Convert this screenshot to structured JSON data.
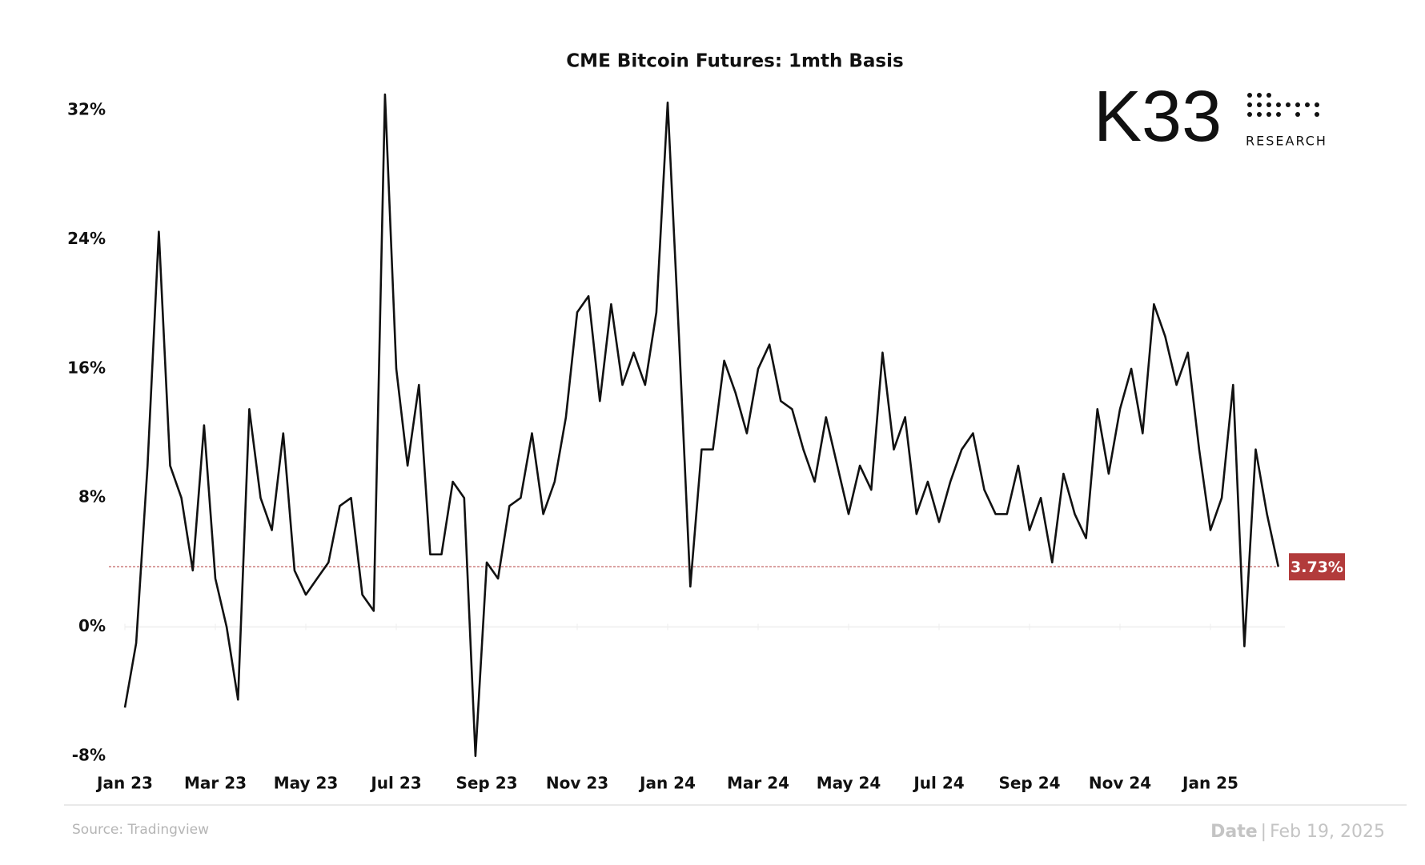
{
  "chart_data": {
    "type": "line",
    "title": "CME Bitcoin Futures: 1mth Basis",
    "brand": {
      "name": "K33",
      "sub": "RESEARCH"
    },
    "source": "Source: Tradingview",
    "date_label": "Date",
    "date_separator": "|",
    "date": "Feb 19, 2025",
    "color": "#111111",
    "highlight_color": "#b23b3b",
    "categories": [
      "Jan 23",
      null,
      null,
      null,
      null,
      null,
      null,
      null,
      "Mar 23",
      null,
      null,
      null,
      null,
      null,
      null,
      null,
      "May 23",
      null,
      null,
      null,
      null,
      null,
      null,
      null,
      "Jul 23",
      null,
      null,
      null,
      null,
      null,
      null,
      null,
      "Sep 23",
      null,
      null,
      null,
      null,
      null,
      null,
      null,
      "Nov 23",
      null,
      null,
      null,
      null,
      null,
      null,
      null,
      "Jan 24",
      null,
      null,
      null,
      null,
      null,
      null,
      null,
      "Mar 24",
      null,
      null,
      null,
      null,
      null,
      null,
      null,
      "May 24",
      null,
      null,
      null,
      null,
      null,
      null,
      null,
      "Jul 24",
      null,
      null,
      null,
      null,
      null,
      null,
      null,
      "Sep 24",
      null,
      null,
      null,
      null,
      null,
      null,
      null,
      "Nov 24",
      null,
      null,
      null,
      null,
      null,
      null,
      null,
      "Jan 25",
      null,
      null,
      null,
      null,
      null,
      null
    ],
    "values": [
      -5,
      -1,
      10,
      24.5,
      10,
      8,
      3.5,
      12.5,
      3,
      0,
      -4.5,
      13.5,
      8,
      6,
      12,
      3.5,
      2,
      3,
      4,
      7.5,
      8,
      2,
      1,
      33,
      16,
      10,
      15,
      4.5,
      4.5,
      9,
      8,
      -8,
      4,
      3,
      7.5,
      8,
      12,
      7,
      9,
      13,
      19.5,
      20.5,
      14,
      20,
      15,
      17,
      15,
      19.5,
      32.5,
      18,
      2.5,
      11,
      11,
      16.5,
      14.5,
      12,
      16,
      17.5,
      14,
      13.5,
      11,
      9,
      13,
      10,
      7,
      10,
      8.5,
      17,
      11,
      13,
      7,
      9,
      6.5,
      9,
      11,
      12,
      8.5,
      7,
      7,
      10,
      6,
      8,
      4,
      9.5,
      7,
      5.5,
      13.5,
      9.5,
      13.5,
      16,
      12,
      20,
      18,
      15,
      17,
      11,
      6,
      8,
      15,
      -1.2,
      11,
      7,
      3.73
    ],
    "value_labels": [
      null,
      null,
      null,
      null,
      null,
      null,
      null,
      null,
      null,
      null,
      null,
      null,
      null,
      null,
      null,
      null,
      null,
      null,
      null,
      null,
      null,
      null,
      null,
      null,
      null,
      null,
      null,
      null,
      null,
      null,
      null,
      null,
      null,
      null,
      null,
      null,
      null,
      null,
      null,
      null,
      null,
      null,
      null,
      null,
      null,
      null,
      null,
      null,
      null,
      null,
      null,
      null,
      null,
      null,
      null,
      null,
      null,
      null,
      null,
      null,
      null,
      null,
      null,
      null,
      null,
      null,
      null,
      null,
      null,
      null,
      null,
      null,
      null,
      null,
      null,
      null,
      null,
      null,
      null,
      null,
      null,
      null,
      null,
      null,
      null,
      null,
      null,
      null,
      null,
      null,
      null,
      null,
      null,
      null,
      null,
      null,
      null,
      null,
      null,
      null,
      null,
      null,
      "3.73%"
    ],
    "ylim": [
      -9,
      33.5
    ],
    "yticks": [
      {
        "value": -8,
        "label": "-8%"
      },
      {
        "value": 0,
        "label": "0%"
      },
      {
        "value": 8,
        "label": "8%"
      },
      {
        "value": 16,
        "label": "16%"
      },
      {
        "value": 24,
        "label": "24%"
      },
      {
        "value": 32,
        "label": "32%"
      }
    ],
    "grid": false
  }
}
